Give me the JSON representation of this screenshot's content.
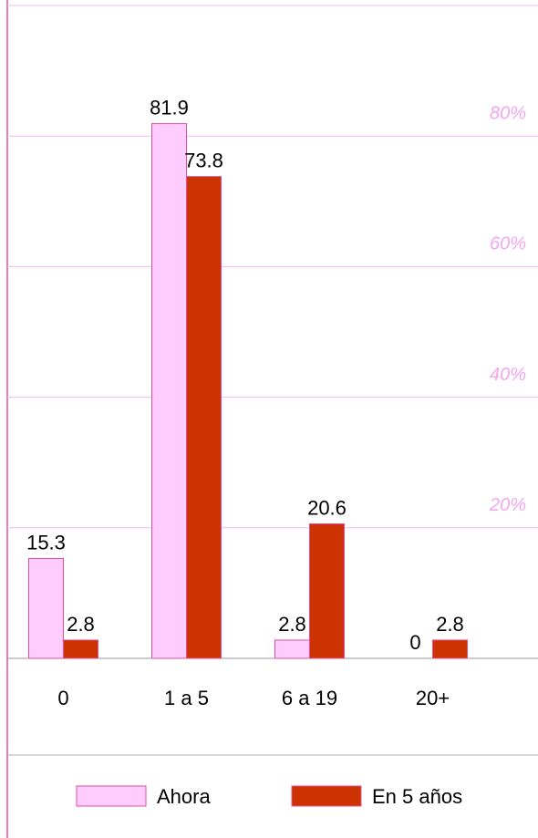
{
  "chart_data": {
    "type": "bar",
    "categories": [
      "0",
      "1 a 5",
      "6 a 19",
      "20+"
    ],
    "series": [
      {
        "name": "Ahora",
        "color": "#ffccff",
        "values": [
          15.3,
          81.9,
          2.8,
          0
        ]
      },
      {
        "name": "En 5 años",
        "color": "#cc3300",
        "values": [
          2.8,
          73.8,
          20.6,
          2.8
        ]
      }
    ],
    "ylim": [
      0,
      100
    ],
    "yticks": [
      {
        "value": 20,
        "label": "20%"
      },
      {
        "value": 40,
        "label": "40%"
      },
      {
        "value": 60,
        "label": "60%"
      },
      {
        "value": 80,
        "label": "80%"
      }
    ],
    "grid": true
  }
}
